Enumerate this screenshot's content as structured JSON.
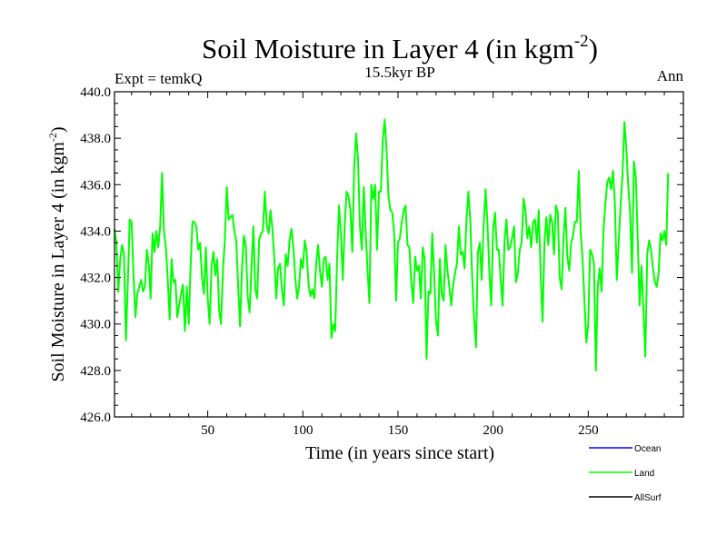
{
  "chart_data": {
    "type": "line",
    "title_main": "Soil Moisture in Layer 4 (in kgm",
    "title_sup": "-2",
    "title_close": ")",
    "subtitle": "15.5kyr BP",
    "left_label": "Expt = temkQ",
    "right_label": "Ann",
    "xlabel": "Time (in years since start)",
    "ylabel_main": "Soil Moisture in Layer 4 (in kgm",
    "ylabel_sup": "-2",
    "ylabel_close": ")",
    "xlim": [
      1,
      300
    ],
    "ylim": [
      426,
      440
    ],
    "xticks": [
      50,
      100,
      150,
      200,
      250
    ],
    "yticks": [
      426,
      428,
      430,
      432,
      434,
      436,
      438,
      440
    ],
    "ytick_labels": [
      "426.0",
      "428.0",
      "430.0",
      "432.0",
      "434.0",
      "436.0",
      "438.0",
      "440.0"
    ],
    "legend": [
      {
        "name": "Ocean",
        "color": "#0000ff"
      },
      {
        "name": "Land",
        "color": "#00ff00"
      },
      {
        "name": "AllSurf",
        "color": "#000000"
      }
    ],
    "series": [
      {
        "name": "Land",
        "color": "#00ff00",
        "x_start": 1,
        "values": [
          434.1,
          433.5,
          431.4,
          432.8,
          433.4,
          433.0,
          429.3,
          431.8,
          434.5,
          434.4,
          432.1,
          430.3,
          431.3,
          431.6,
          431.9,
          431.4,
          431.6,
          433.2,
          432.6,
          431.1,
          433.9,
          433.1,
          434.0,
          433.3,
          434.2,
          436.5,
          434.0,
          433.3,
          431.9,
          430.2,
          432.8,
          431.8,
          431.9,
          430.3,
          430.8,
          431.3,
          431.7,
          429.7,
          431.6,
          430.0,
          432.5,
          434.4,
          434.4,
          434.2,
          433.2,
          433.5,
          432.0,
          431.3,
          433.3,
          431.1,
          430.0,
          432.5,
          433.1,
          432.1,
          432.8,
          430.6,
          430.0,
          432.3,
          433.6,
          435.9,
          434.5,
          434.6,
          434.7,
          434.0,
          433.6,
          431.6,
          429.9,
          432.4,
          433.8,
          433.4,
          431.2,
          430.5,
          432.4,
          434.2,
          431.5,
          431.1,
          433.6,
          433.9,
          434.0,
          435.7,
          434.3,
          433.9,
          434.9,
          434.1,
          432.8,
          431.1,
          432.4,
          432.6,
          431.5,
          430.8,
          433.0,
          432.5,
          433.6,
          434.1,
          433.3,
          432.0,
          431.1,
          431.6,
          432.8,
          432.4,
          433.6,
          433.1,
          431.7,
          431.2,
          431.5,
          431.1,
          432.6,
          433.4,
          432.3,
          431.6,
          432.8,
          432.9,
          431.9,
          432.6,
          429.4,
          430.0,
          429.7,
          432.8,
          435.1,
          433.9,
          431.9,
          434.3,
          435.7,
          435.5,
          434.9,
          433.1,
          436.8,
          438.2,
          437.1,
          434.2,
          433.2,
          435.9,
          434.0,
          432.3,
          430.9,
          436.0,
          435.4,
          436.0,
          433.2,
          435.7,
          435.7,
          437.9,
          438.8,
          437.5,
          435.5,
          434.9,
          434.8,
          433.9,
          431.0,
          433.5,
          433.7,
          434.4,
          434.9,
          435.1,
          433.4,
          433.3,
          431.8,
          430.9,
          432.9,
          432.3,
          432.5,
          431.1,
          433.3,
          432.8,
          428.5,
          431.4,
          431.3,
          433.9,
          432.2,
          430.1,
          429.5,
          432.8,
          431.3,
          431.0,
          433.4,
          432.3,
          431.6,
          430.8,
          431.7,
          432.2,
          432.6,
          434.2,
          433.0,
          433.1,
          432.4,
          434.5,
          435.7,
          434.5,
          432.0,
          430.2,
          429.0,
          433.1,
          433.5,
          431.9,
          434.2,
          435.8,
          434.4,
          432.3,
          430.8,
          434.1,
          434.8,
          433.2,
          433.2,
          431.9,
          430.8,
          433.6,
          434.5,
          433.2,
          433.3,
          433.7,
          434.2,
          431.8,
          432.2,
          433.2,
          433.5,
          435.4,
          434.9,
          433.7,
          434.2,
          433.3,
          434.4,
          434.5,
          433.5,
          434.9,
          432.1,
          430.1,
          433.5,
          434.6,
          433.4,
          434.7,
          434.4,
          433.0,
          435.1,
          434.8,
          432.0,
          431.5,
          433.7,
          435.0,
          432.9,
          432.3,
          433.5,
          433.8,
          434.4,
          434.4,
          436.6,
          434.0,
          432.8,
          431.0,
          429.2,
          430.0,
          433.2,
          433.0,
          432.6,
          428.0,
          431.6,
          432.4,
          431.4,
          434.0,
          435.2,
          436.1,
          436.3,
          435.8,
          436.6,
          435.2,
          431.9,
          433.5,
          435.1,
          436.4,
          438.7,
          437.6,
          436.0,
          434.8,
          432.2,
          437.0,
          436.3,
          433.7,
          430.8,
          432.5,
          430.6,
          428.6,
          433.0,
          433.6,
          433.2,
          432.4,
          431.8,
          431.6,
          432.2,
          433.9,
          433.6,
          434.0,
          433.4,
          436.5
        ]
      }
    ]
  }
}
